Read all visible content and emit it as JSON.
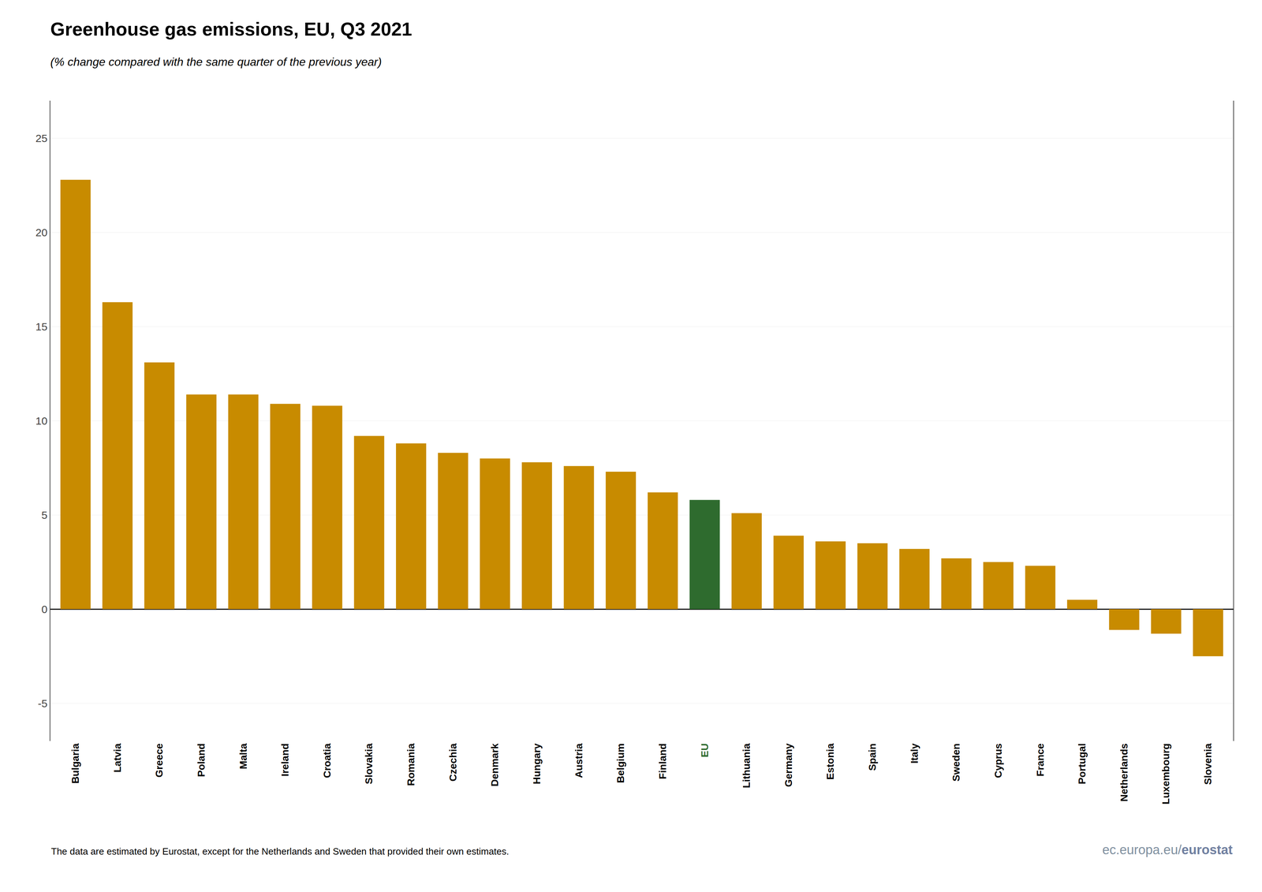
{
  "chart_data": {
    "type": "bar",
    "title": "Greenhouse gas emissions, EU, Q3 2021",
    "subtitle": "(% change compared with the same quarter of the previous year)",
    "annotations": [
      "The data are estimated by Eurostat, except for the Netherlands and Sweden that provided their own estimates.",
      "ec.europa.eu/",
      "eurostat"
    ],
    "categories": [
      "Bulgaria",
      "Latvia",
      "Greece",
      "Poland",
      "Malta",
      "Ireland",
      "Croatia",
      "Slovakia",
      "Romania",
      "Czechia",
      "Denmark",
      "Hungary",
      "Austria",
      "Belgium",
      "Finland",
      "EU",
      "Lithuania",
      "Germany",
      "Estonia",
      "Spain",
      "Italy",
      "Sweden",
      "Cyprus",
      "France",
      "Portugal",
      "Netherlands",
      "Luxembourg",
      "Slovenia"
    ],
    "values": [
      22.8,
      16.3,
      13.1,
      11.4,
      11.4,
      10.9,
      10.8,
      9.2,
      8.8,
      8.3,
      8.0,
      7.8,
      7.6,
      7.3,
      6.2,
      5.8,
      5.1,
      3.9,
      3.6,
      3.5,
      3.2,
      2.7,
      2.5,
      2.3,
      0.5,
      -1.1,
      -1.3,
      -2.5
    ],
    "colors": [
      "#C88B00",
      "#C88B00",
      "#C88B00",
      "#C88B00",
      "#C88B00",
      "#C88B00",
      "#C88B00",
      "#C88B00",
      "#C88B00",
      "#C88B00",
      "#C88B00",
      "#C88B00",
      "#C88B00",
      "#C88B00",
      "#C88B00",
      "#2E6B2E",
      "#C88B00",
      "#C88B00",
      "#C88B00",
      "#C88B00",
      "#C88B00",
      "#C88B00",
      "#C88B00",
      "#C88B00",
      "#C88B00",
      "#C88B00",
      "#C88B00",
      "#C88B00"
    ],
    "ylim": [
      -7,
      27
    ],
    "yticks": [
      -5,
      0,
      5,
      10,
      15,
      20,
      25
    ],
    "grid": true
  }
}
